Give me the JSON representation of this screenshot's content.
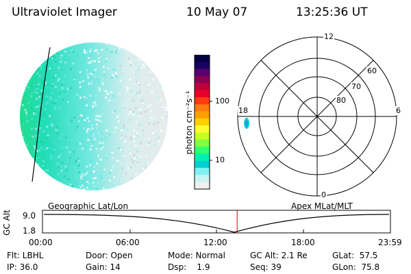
{
  "header": {
    "instrument": "Ultraviolet Imager",
    "date": "10 May 07",
    "time": "13:25:36 UT"
  },
  "colorbar": {
    "unit_label": "photon cm⁻²s⁻¹",
    "ticks": [
      "100",
      "10"
    ],
    "colors": [
      "#000040",
      "#1a0060",
      "#5a006e",
      "#8a0052",
      "#c0003a",
      "#e8002a",
      "#ff3a10",
      "#ff7a10",
      "#ffa000",
      "#ffd000",
      "#ffff30",
      "#c8ff20",
      "#80ff40",
      "#30ff70",
      "#00f0b0",
      "#00d0d0",
      "#80f0f0",
      "#c8f4f4",
      "#f0f0f0"
    ]
  },
  "polar_plot": {
    "mlt_labels": {
      "top": "12",
      "bottom": "0",
      "left": "18",
      "right": "6"
    },
    "lat_labels": [
      "60",
      "70",
      "80"
    ]
  },
  "timeline": {
    "left_label": "Geographic Lat/Lon",
    "right_label": "Apex MLat/MLT",
    "y_axis_label": "GC Alt",
    "y_ticks": [
      "9.0",
      "1.8"
    ],
    "x_ticks": [
      "00:00",
      "06:00",
      "12:00",
      "18:00",
      "23:59"
    ],
    "current_time_fraction": 0.5594
  },
  "status": {
    "filter": "Flt: LBHL",
    "ip": "IP: 36.0",
    "door": "Door: Open",
    "gain": "Gain: 14",
    "mode": "Mode: Normal",
    "dsp": "Dsp:    1.9",
    "gc_alt": "GC Alt: 2.1 Re",
    "seq": "Seq: 39",
    "glat": "GLat:  57.5",
    "glon": "GLon:  75.8"
  }
}
